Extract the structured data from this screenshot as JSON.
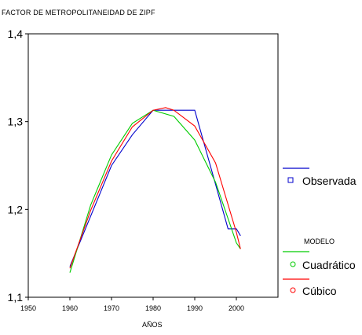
{
  "chart_data": {
    "type": "line",
    "title": "FACTOR DE METROPOLITANEIDAD DE ZIPF",
    "xlabel": "AÑOS",
    "ylabel": "",
    "xlim": [
      1950,
      2010
    ],
    "ylim": [
      1.1,
      1.4
    ],
    "x_ticks": [
      "1950",
      "1960",
      "1970",
      "1980",
      "1990",
      "2000"
    ],
    "y_ticks": [
      "1,1",
      "1,2",
      "1,3",
      "1,4"
    ],
    "grid": false,
    "legend_placement": "right",
    "legend_heading": "MODELO",
    "series": [
      {
        "name": "Observada",
        "color": "#0000cc",
        "marker": "square",
        "x": [
          1960,
          1970,
          1975,
          1980,
          1985,
          1990,
          1998,
          2000,
          2001
        ],
        "y": [
          1.135,
          1.25,
          1.285,
          1.313,
          1.313,
          1.313,
          1.178,
          1.178,
          1.17
        ]
      },
      {
        "name": "Cuadrático",
        "color": "#00cc00",
        "marker": "circle",
        "x": [
          1960,
          1965,
          1970,
          1975,
          1980,
          1985,
          1990,
          1995,
          2000,
          2001
        ],
        "y": [
          1.128,
          1.205,
          1.262,
          1.298,
          1.313,
          1.306,
          1.279,
          1.231,
          1.162,
          1.155
        ]
      },
      {
        "name": "Cúbico",
        "color": "#ff0000",
        "marker": "circle",
        "x": [
          1960,
          1965,
          1970,
          1975,
          1980,
          1983,
          1985,
          1990,
          1995,
          2000,
          2001
        ],
        "y": [
          1.133,
          1.199,
          1.255,
          1.294,
          1.313,
          1.316,
          1.313,
          1.295,
          1.253,
          1.174,
          1.155
        ]
      }
    ]
  }
}
